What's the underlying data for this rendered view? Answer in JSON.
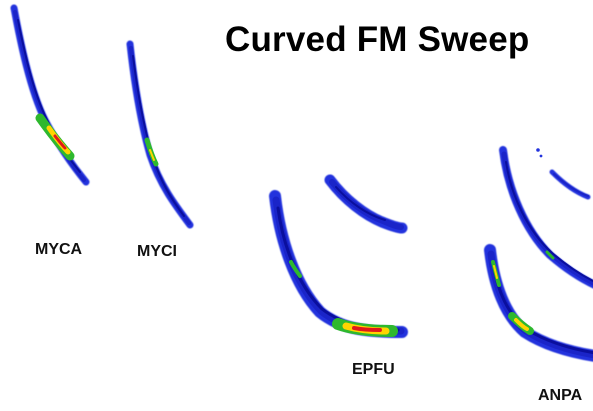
{
  "title": "Curved FM Sweep",
  "species": [
    {
      "code": "MYCA"
    },
    {
      "code": "MYCI"
    },
    {
      "code": "EPFU"
    },
    {
      "code": "ANPA"
    }
  ],
  "colors": {
    "sweep_edge": "#2233dd",
    "sweep_mid": "#1a24c8",
    "sweep_inner": "#0a0f9e",
    "energy_green": "#2eb82e",
    "energy_yellow": "#ffd400",
    "energy_red": "#e01a1a"
  }
}
